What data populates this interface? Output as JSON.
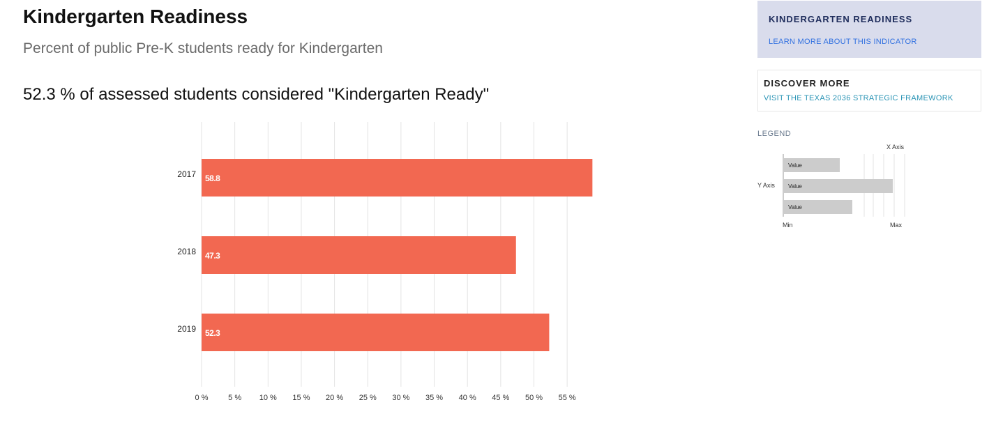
{
  "header": {
    "title": "Kindergarten Readiness",
    "subtitle": "Percent of public Pre-K students ready for Kindergarten",
    "headline": "52.3 % of assessed students considered \"Kindergarten Ready\""
  },
  "sidebar": {
    "card_indicator": {
      "heading": "KINDERGARTEN READINESS",
      "link": "LEARN MORE ABOUT THIS INDICATOR"
    },
    "card_discover": {
      "heading": "DISCOVER MORE",
      "link": "VISIT THE TEXAS 2036 STRATEGIC FRAMEWORK"
    },
    "legend": {
      "title": "LEGEND",
      "x_axis_label": "X Axis",
      "y_axis_label": "Y Axis",
      "value_label": "Value",
      "min_label": "Min",
      "max_label": "Max"
    }
  },
  "colors": {
    "bar": "#f26851",
    "grid": "#e3e3e3",
    "legend_bar": "#cccccc"
  },
  "chart_data": {
    "type": "bar",
    "orientation": "horizontal",
    "categories": [
      "2017",
      "2018",
      "2019"
    ],
    "values": [
      58.8,
      47.3,
      52.3
    ],
    "value_labels": [
      "58.8",
      "47.3",
      "52.3"
    ],
    "xlim": [
      0,
      58.8
    ],
    "x_ticks": [
      0,
      5,
      10,
      15,
      20,
      25,
      30,
      35,
      40,
      45,
      50,
      55
    ],
    "x_tick_labels": [
      "0 %",
      "5 %",
      "10 %",
      "15 %",
      "20 %",
      "25 %",
      "30 %",
      "35 %",
      "40 %",
      "45 %",
      "50 %",
      "55 %"
    ],
    "grid": true
  }
}
